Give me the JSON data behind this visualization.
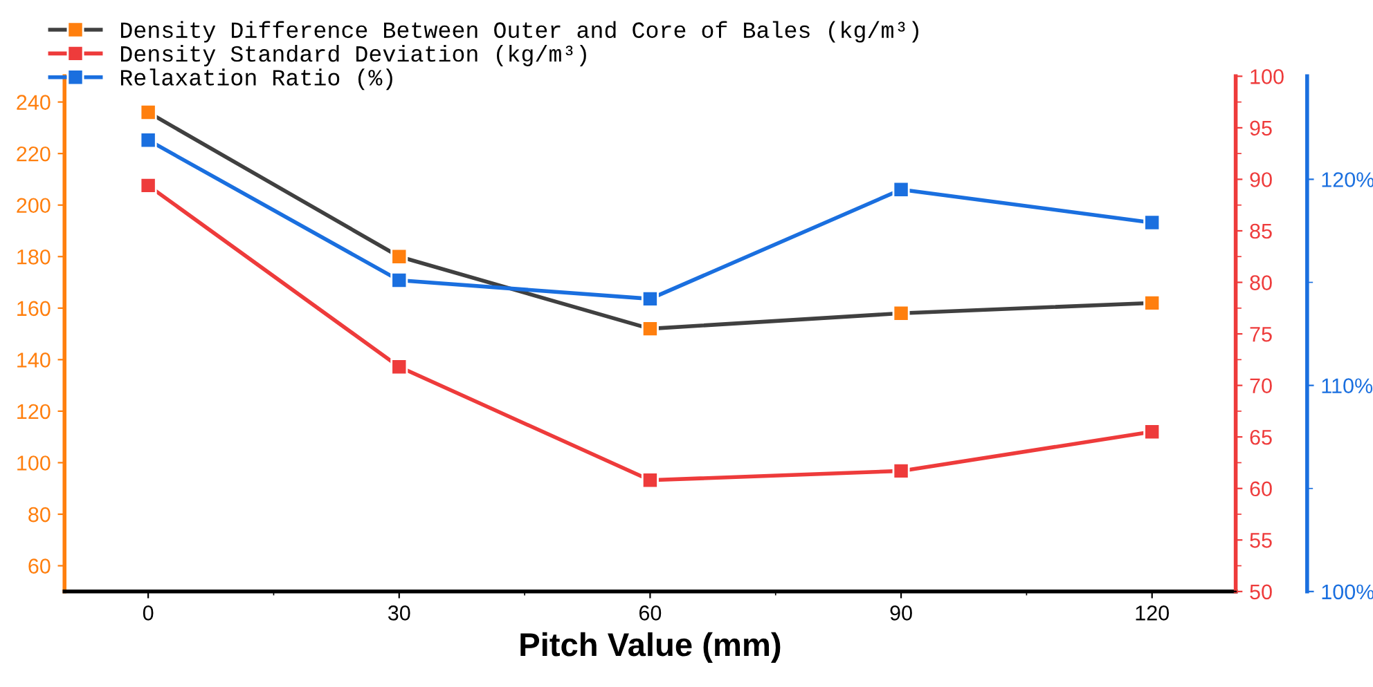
{
  "chart_data": {
    "type": "line",
    "xlabel": "Pitch Value (mm)",
    "x": [
      0,
      30,
      60,
      90,
      120
    ],
    "xlim": [
      -10,
      130
    ],
    "xticks": [
      0,
      30,
      60,
      90,
      120
    ],
    "ylim": [
      50,
      250
    ],
    "yticks": [
      60,
      80,
      100,
      120,
      140,
      160,
      180,
      200,
      220,
      240
    ],
    "y2lim": [
      50,
      100
    ],
    "y2ticks": [
      50,
      55,
      60,
      65,
      70,
      75,
      80,
      85,
      90,
      95,
      100
    ],
    "y3lim": [
      100,
      125
    ],
    "y3ticks": [
      {
        "value": 100,
        "label": "100%"
      },
      {
        "value": 110,
        "label": "110%"
      },
      {
        "value": 120,
        "label": "120%"
      }
    ],
    "marker": "square",
    "line_style": "solid",
    "grid": false,
    "legend": "top",
    "series": [
      {
        "name": "Density Difference Between Outer and Core of Bales (kg/m³)",
        "color": "#404040",
        "colors": [
          "#ff7f0e",
          "#ff7f0e",
          "#ff7f0e",
          "#ff7f0e",
          "#ff7f0e"
        ],
        "values": [
          236,
          180,
          152,
          158,
          162
        ]
      },
      {
        "name": "Density Standard Deviation (kg/m³)",
        "color": "#ee3b3b",
        "axis": "y2",
        "values": [
          89.4,
          71.8,
          60.8,
          61.7,
          65.5
        ]
      },
      {
        "name": "Relaxation Ratio (%)",
        "color": "#1a6fdf",
        "axis": "y3",
        "values": [
          121.9,
          115.1,
          114.2,
          119.5,
          117.9
        ]
      }
    ]
  }
}
